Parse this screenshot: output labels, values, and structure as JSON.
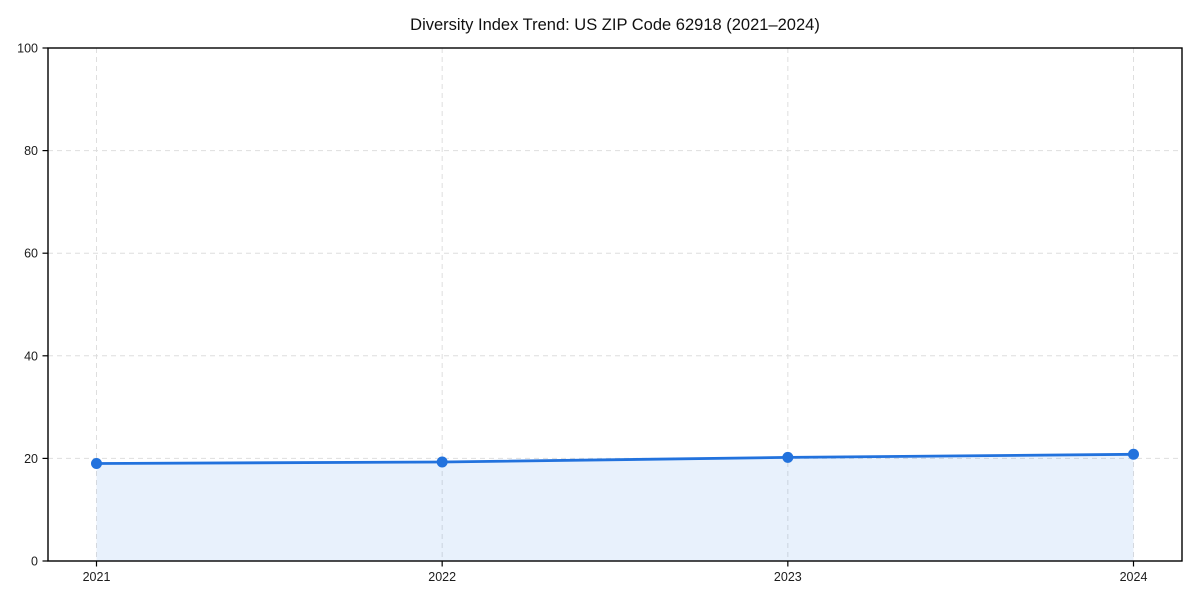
{
  "chart_data": {
    "type": "line",
    "title": "Diversity Index Trend: US ZIP Code 62918 (2021–2024)",
    "x": [
      "2021",
      "2022",
      "2023",
      "2024"
    ],
    "values": [
      19.0,
      19.3,
      20.2,
      20.8
    ],
    "xlabel": "",
    "ylabel": "",
    "ylim": [
      0,
      100
    ],
    "yticks": [
      0,
      20,
      40,
      60,
      80,
      100
    ],
    "grid": "dashed, horizontal and vertical",
    "legend": "none",
    "area_fill_under_line": true,
    "markers": "filled circles at each data point",
    "colors": {
      "line": "#2272dd",
      "marker": "#2272dd",
      "fill": "rgba(34,114,221,0.1)",
      "grid": "#dedede",
      "axis": "#000000",
      "text": "#1c1c1c",
      "background": "#ffffff"
    }
  }
}
